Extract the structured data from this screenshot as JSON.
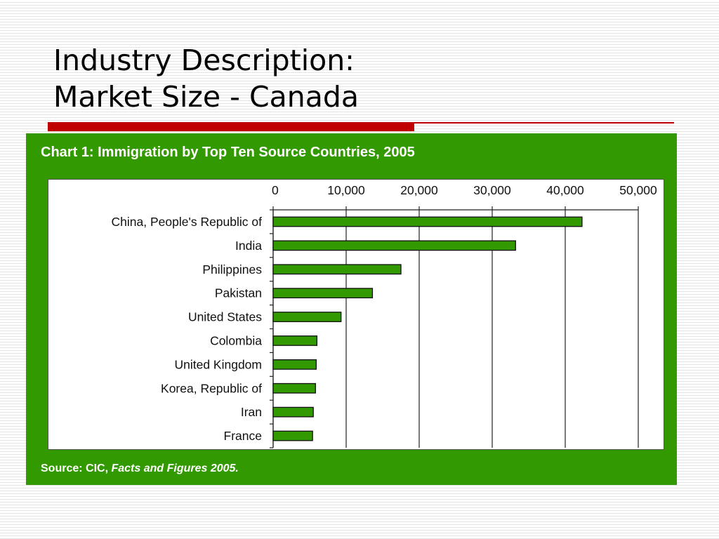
{
  "slide": {
    "title_line1": "Industry Description:",
    "title_line2": "Market Size - Canada"
  },
  "colors": {
    "title_rule": "#c00000",
    "panel": "#339900",
    "bar": "#339900"
  },
  "chart_data": {
    "type": "bar",
    "orientation": "horizontal",
    "title": "Chart 1: Immigration by Top Ten Source Countries, 2005",
    "source_prefix": "Source: CIC, ",
    "source_title": "Facts and Figures 2005.",
    "categories": [
      "China, People's Republic of",
      "India",
      "Philippines",
      "Pakistan",
      "United States",
      "Colombia",
      "United Kingdom",
      "Korea, Republic of",
      "Iran",
      "France"
    ],
    "values": [
      42300,
      33200,
      17500,
      13600,
      9300,
      6000,
      5900,
      5800,
      5500,
      5400
    ],
    "xlim": [
      0,
      50000
    ],
    "x_ticks": [
      0,
      10000,
      20000,
      30000,
      40000,
      50000
    ],
    "x_tick_labels": [
      "0",
      "10,000",
      "20,000",
      "30,000",
      "40,000",
      "50,000"
    ],
    "x_axis_position": "top",
    "grid": true
  }
}
